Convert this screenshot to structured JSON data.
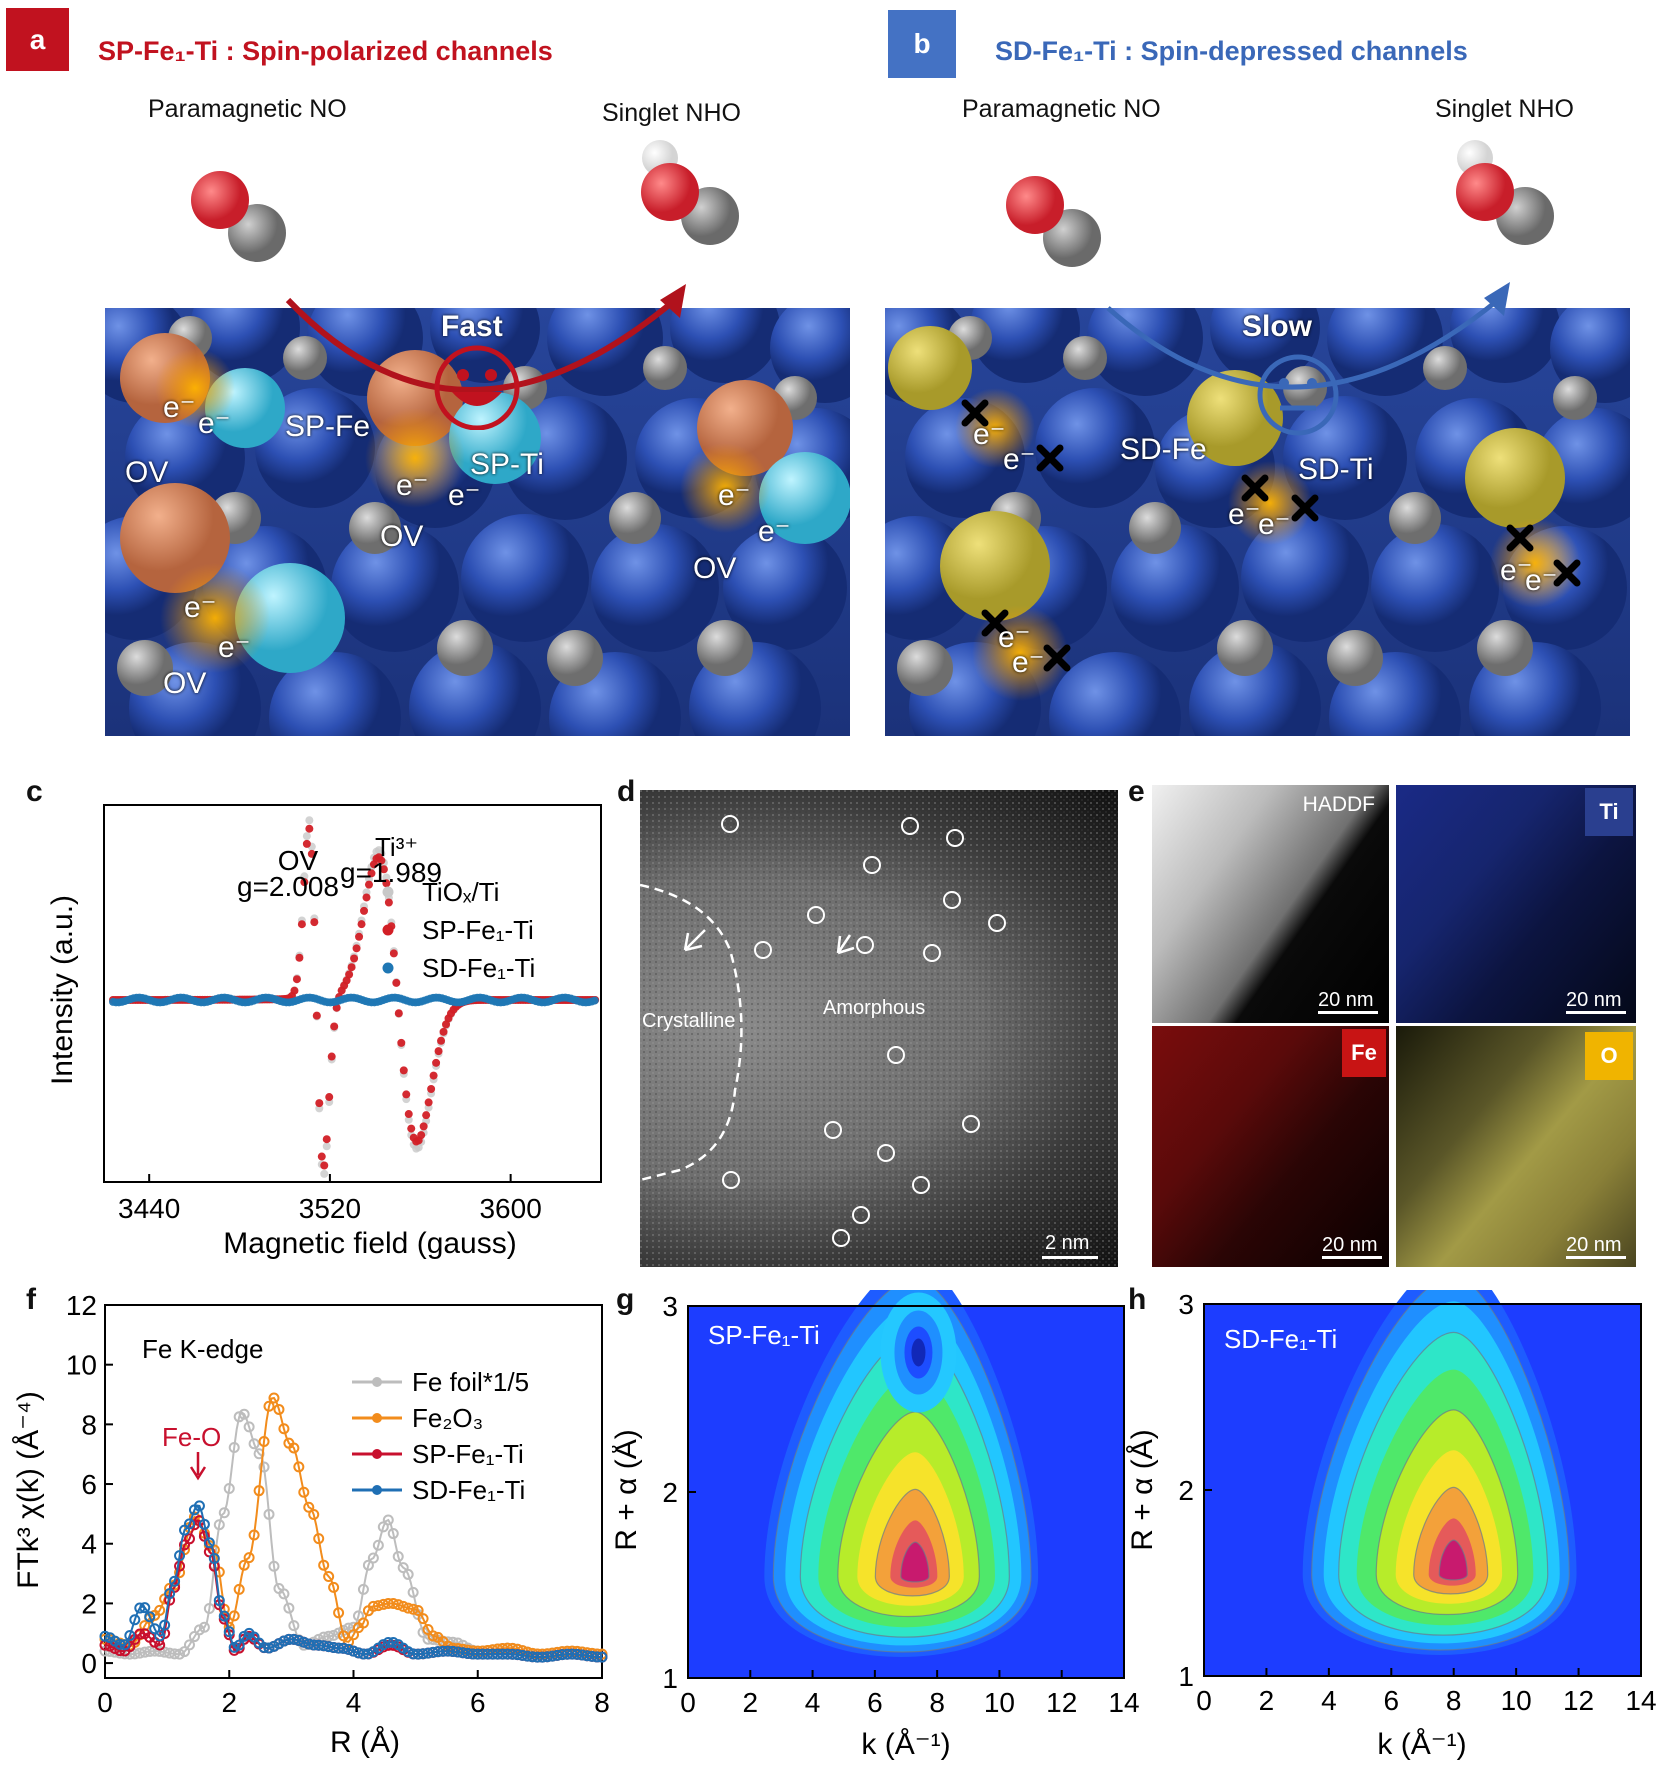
{
  "panel_a": {
    "label": "a",
    "title": "SP-Fe₁-Ti : Spin-polarized channels",
    "mol_left": "Paramagnetic NO",
    "mol_right": "Singlet NHO",
    "speed": "Fast",
    "labels": {
      "sp_fe": "SP-Fe",
      "sp_ti": "SP-Ti",
      "ov": "OV",
      "e": "e⁻"
    }
  },
  "panel_b": {
    "label": "b",
    "title": "SD-Fe₁-Ti : Spin-depressed channels",
    "mol_left": "Paramagnetic NO",
    "mol_right": "Singlet NHO",
    "speed": "Slow",
    "labels": {
      "sd_fe": "SD-Fe",
      "sd_ti": "SD-Ti",
      "e": "e⁻"
    }
  },
  "panel_c": {
    "label": "c",
    "chart_data": {
      "type": "scatter",
      "xlabel": "Magnetic field (gauss)",
      "ylabel": "Intensity (a.u.)",
      "xlim": [
        3420,
        3640
      ],
      "xticks": [
        "3440",
        "3520",
        "3600"
      ],
      "annotations": [
        {
          "name": "OV",
          "value": "g=2.008",
          "x": 3514
        },
        {
          "name": "Ti³⁺",
          "value": "g=1.989",
          "x": 3548
        }
      ],
      "legend_placement": "right",
      "series": [
        {
          "name": "TiOₓ/Ti",
          "color": "#c8c8c8"
        },
        {
          "name": "SP-Fe₁-Ti",
          "color": "#d21f26"
        },
        {
          "name": "SD-Fe₁-Ti",
          "color": "#1f77b4"
        }
      ]
    }
  },
  "panel_d": {
    "label": "d",
    "crystalline": "Crystalline",
    "amorphous": "Amorphous",
    "scale": "2 nm"
  },
  "panel_e": {
    "label": "e",
    "maps": [
      {
        "tag": "HADDF",
        "scale": "20 nm"
      },
      {
        "tag": "Ti",
        "scale": "20 nm",
        "color": "#2a3f8f"
      },
      {
        "tag": "Fe",
        "scale": "20 nm",
        "color": "#c81414"
      },
      {
        "tag": "O",
        "scale": "20 nm",
        "color": "#f0b400"
      }
    ]
  },
  "panel_f": {
    "label": "f",
    "chart_data": {
      "type": "line",
      "title": "Fe K-edge",
      "xlabel": "R (Å)",
      "ylabel": "FTk³ χ(k) (Å⁻⁴)",
      "xlim": [
        0,
        8
      ],
      "ylim": [
        -0.5,
        12
      ],
      "xticks": [
        "0",
        "2",
        "4",
        "6",
        "8"
      ],
      "yticks": [
        "0",
        "2",
        "4",
        "6",
        "8",
        "10",
        "12"
      ],
      "annotation": {
        "text": "Fe-O",
        "x": 1.5,
        "y": 5.8
      },
      "series": [
        {
          "name": "Fe foil*1/5",
          "color": "#bdbdbd",
          "x": [
            0,
            0.4,
            0.8,
            1.2,
            1.6,
            1.9,
            2.2,
            2.5,
            2.8,
            3.2,
            3.6,
            4.0,
            4.3,
            4.55,
            4.8,
            5.2,
            5.6,
            6,
            6.5,
            7,
            7.5,
            8
          ],
          "y": [
            0.4,
            0.3,
            0.4,
            0.3,
            1.2,
            5.0,
            8.4,
            7.0,
            2.5,
            0.6,
            0.9,
            1.2,
            3.5,
            4.8,
            3.2,
            0.8,
            0.7,
            0.4,
            0.5,
            0.3,
            0.4,
            0.3
          ]
        },
        {
          "name": "Fe₂O₃",
          "color": "#f28c1c",
          "x": [
            0,
            0.4,
            0.8,
            1.1,
            1.45,
            1.75,
            2.0,
            2.3,
            2.7,
            3.0,
            3.3,
            3.6,
            3.9,
            4.1,
            4.3,
            4.6,
            5.0,
            5.3,
            5.6,
            6,
            6.5,
            7,
            7.5,
            8
          ],
          "y": [
            0.8,
            0.6,
            1.6,
            2.6,
            4.9,
            3.8,
            1.2,
            3.5,
            8.9,
            7.3,
            5.2,
            2.9,
            0.7,
            1.2,
            1.9,
            2.0,
            1.8,
            0.9,
            0.5,
            0.4,
            0.5,
            0.3,
            0.4,
            0.3
          ]
        },
        {
          "name": "SP-Fe₁-Ti",
          "color": "#c8102e",
          "x": [
            0,
            0.3,
            0.6,
            0.9,
            1.1,
            1.3,
            1.5,
            1.7,
            1.9,
            2.1,
            2.3,
            2.6,
            3.0,
            3.4,
            3.8,
            4.2,
            4.6,
            5.0,
            5.5,
            6,
            6.5,
            7,
            7.5,
            8
          ],
          "y": [
            0.6,
            0.4,
            1.0,
            0.6,
            2.5,
            4.0,
            4.8,
            3.7,
            1.5,
            0.4,
            0.9,
            0.5,
            0.8,
            0.6,
            0.5,
            0.3,
            0.6,
            0.3,
            0.4,
            0.3,
            0.3,
            0.2,
            0.3,
            0.2
          ]
        },
        {
          "name": "SD-Fe₁-Ti",
          "color": "#1f6fb4",
          "x": [
            0,
            0.3,
            0.6,
            0.9,
            1.1,
            1.3,
            1.5,
            1.7,
            1.9,
            2.1,
            2.3,
            2.6,
            3.0,
            3.4,
            3.8,
            4.2,
            4.6,
            5.0,
            5.5,
            6,
            6.5,
            7,
            7.5,
            8
          ],
          "y": [
            0.9,
            0.6,
            1.9,
            0.9,
            2.7,
            4.5,
            5.3,
            4.0,
            1.6,
            0.5,
            1.0,
            0.5,
            0.8,
            0.6,
            0.5,
            0.3,
            0.7,
            0.3,
            0.4,
            0.3,
            0.3,
            0.2,
            0.3,
            0.2
          ]
        }
      ]
    }
  },
  "panel_g": {
    "label": "g",
    "chart_data": {
      "type": "heatmap",
      "title": "SP-Fe₁-Ti",
      "xlabel": "k (Å⁻¹)",
      "ylabel": "R + α (Å)",
      "xlim": [
        0,
        14
      ],
      "ylim": [
        1,
        3
      ],
      "xticks": [
        "0",
        "2",
        "4",
        "6",
        "8",
        "10",
        "12",
        "14"
      ],
      "yticks": [
        "1",
        "2",
        "3"
      ],
      "peaks": [
        {
          "k": 7.3,
          "r": 1.6,
          "intensity": 1.0
        },
        {
          "k": 7.4,
          "r": 2.75,
          "intensity": 0.55
        }
      ]
    }
  },
  "panel_h": {
    "label": "h",
    "chart_data": {
      "type": "heatmap",
      "title": "SD-Fe₁-Ti",
      "xlabel": "k (Å⁻¹)",
      "ylabel": "R + α (Å)",
      "xlim": [
        0,
        14
      ],
      "ylim": [
        1,
        3
      ],
      "xticks": [
        "0",
        "2",
        "4",
        "6",
        "8",
        "10",
        "12",
        "14"
      ],
      "yticks": [
        "1",
        "2",
        "3"
      ],
      "peaks": [
        {
          "k": 8.0,
          "r": 1.6,
          "intensity": 1.0
        }
      ]
    }
  }
}
